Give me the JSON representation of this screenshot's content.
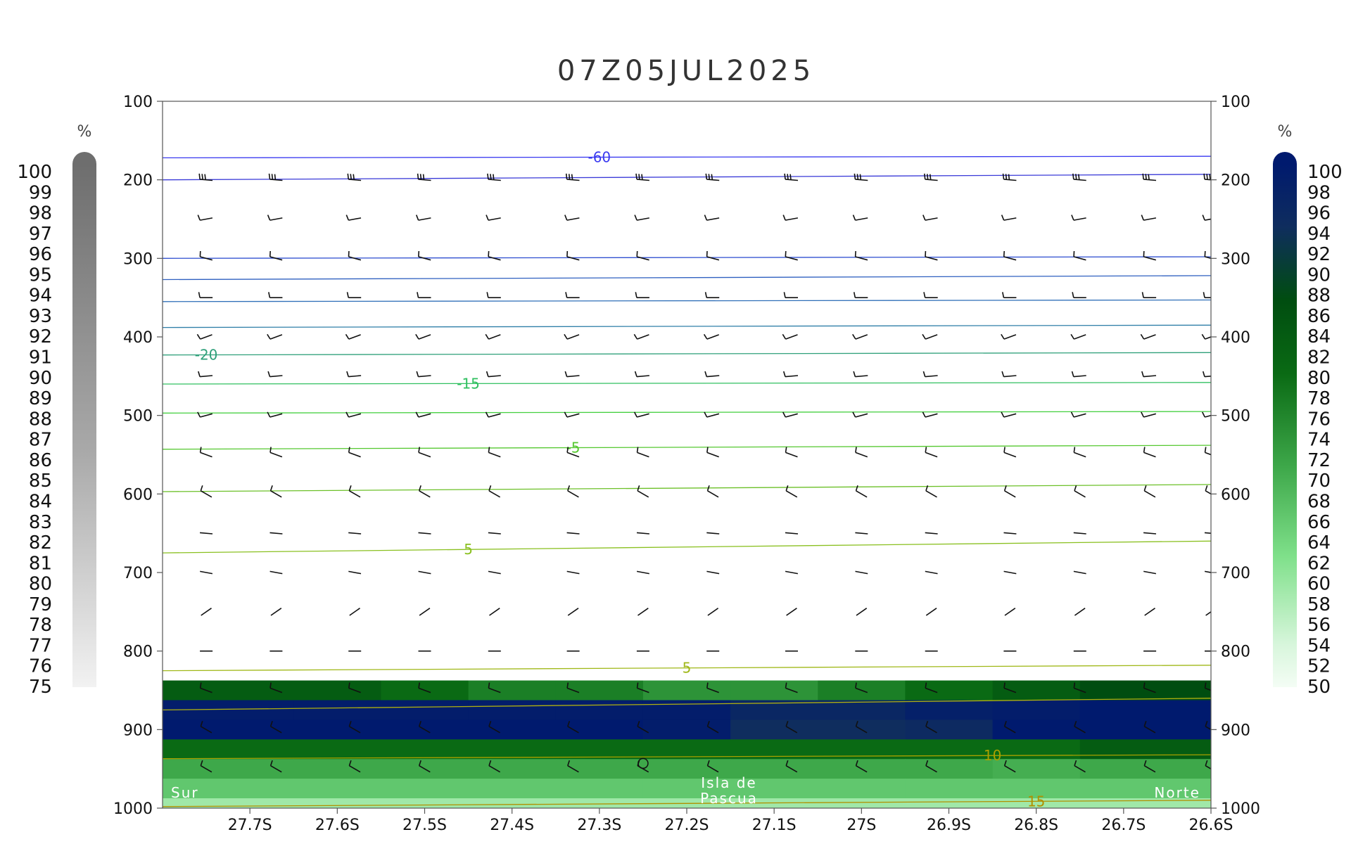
{
  "chart_data": {
    "type": "heatmap",
    "title": "07Z05JUL2025",
    "x_tick_labels": [
      "27.7S",
      "27.6S",
      "27.5S",
      "27.4S",
      "27.3S",
      "27.2S",
      "27.1S",
      "27S",
      "26.9S",
      "26.8S",
      "26.7S",
      "26.6S"
    ],
    "x_values": [
      -27.7,
      -27.6,
      -27.5,
      -27.4,
      -27.3,
      -27.2,
      -27.1,
      -27.0,
      -26.9,
      -26.8,
      -26.7,
      -26.6
    ],
    "xlim": [
      -27.8,
      -26.6
    ],
    "y_tick_labels": [
      "100",
      "200",
      "300",
      "400",
      "500",
      "600",
      "700",
      "800",
      "900",
      "1000"
    ],
    "y_values": [
      100,
      200,
      300,
      400,
      500,
      600,
      700,
      800,
      900,
      1000
    ],
    "ylim": [
      100,
      1000
    ],
    "y_axis": "pressure (inverted)",
    "annotations": {
      "left": "Sur",
      "center_line1": "Isla de",
      "center_line2": "Pascua",
      "right": "Norte"
    },
    "colorbar_left": {
      "unit": "%",
      "labels": [
        "100",
        "99",
        "98",
        "97",
        "96",
        "95",
        "94",
        "93",
        "92",
        "91",
        "90",
        "89",
        "88",
        "87",
        "86",
        "85",
        "84",
        "83",
        "82",
        "81",
        "80",
        "79",
        "78",
        "77",
        "76",
        "75"
      ],
      "colors": [
        "#6e6e6e",
        "#d2d2d2",
        "#f2f2f2"
      ]
    },
    "colorbar_right": {
      "unit": "%",
      "labels": [
        "100",
        "98",
        "96",
        "94",
        "92",
        "90",
        "88",
        "86",
        "84",
        "82",
        "80",
        "78",
        "76",
        "74",
        "72",
        "70",
        "68",
        "66",
        "64",
        "62",
        "60",
        "58",
        "56",
        "54",
        "52",
        "50"
      ],
      "colors": [
        "#001a6e",
        "#0f2d5e",
        "#004d10",
        "#0a6a14",
        "#3ea84a",
        "#7fe08a",
        "#d8f6dc",
        "#f4fdf5"
      ]
    },
    "humidity_field": {
      "description": "relative humidity shading, values in percent",
      "levels_hpa": [
        825,
        850,
        875,
        900,
        925,
        950,
        975,
        1000
      ],
      "values": [
        [
          50,
          50,
          50,
          50,
          50,
          50,
          50,
          50,
          50,
          50,
          50,
          50
        ],
        [
          88,
          88,
          86,
          84,
          84,
          82,
          82,
          84,
          86,
          88,
          90,
          90
        ],
        [
          99,
          99,
          99,
          99,
          99,
          99,
          96,
          96,
          98,
          99,
          100,
          100
        ],
        [
          100,
          100,
          100,
          100,
          100,
          99,
          94,
          94,
          95,
          100,
          100,
          100
        ],
        [
          86,
          86,
          86,
          86,
          86,
          86,
          86,
          86,
          86,
          86,
          88,
          88
        ],
        [
          80,
          80,
          80,
          80,
          80,
          80,
          80,
          80,
          80,
          78,
          80,
          80
        ],
        [
          72,
          72,
          72,
          72,
          72,
          72,
          72,
          72,
          72,
          72,
          72,
          72
        ],
        [
          62,
          62,
          62,
          62,
          62,
          62,
          62,
          62,
          62,
          62,
          62,
          62
        ]
      ]
    },
    "temperature_contours": [
      {
        "label": "-60",
        "p_left": 172,
        "p_right": 170,
        "color": "#3a3af0",
        "label_at": -27.3
      },
      {
        "label": "",
        "p_left": 200,
        "p_right": 193,
        "color": "#3a3ad8",
        "label_at": null
      },
      {
        "label": "",
        "p_left": 300,
        "p_right": 298,
        "color": "#2f4fd0",
        "label_at": null
      },
      {
        "label": "",
        "p_left": 327,
        "p_right": 322,
        "color": "#2f60c0",
        "label_at": null
      },
      {
        "label": "",
        "p_left": 355,
        "p_right": 353,
        "color": "#2f6fb8",
        "label_at": null
      },
      {
        "label": "",
        "p_left": 388,
        "p_right": 385,
        "color": "#2f7fa8",
        "label_at": null
      },
      {
        "label": "-20",
        "p_left": 423,
        "p_right": 420,
        "color": "#2fa07a",
        "label_at": -27.75
      },
      {
        "label": "-15",
        "p_left": 460,
        "p_right": 458,
        "color": "#30c060",
        "label_at": -27.45
      },
      {
        "label": "",
        "p_left": 497,
        "p_right": 495,
        "color": "#45d040",
        "label_at": null
      },
      {
        "label": "-5",
        "p_left": 543,
        "p_right": 538,
        "color": "#55c830",
        "label_at": -27.33
      },
      {
        "label": "",
        "p_left": 597,
        "p_right": 588,
        "color": "#6cc028",
        "label_at": null
      },
      {
        "label": "5",
        "p_left": 675,
        "p_right": 660,
        "color": "#8ac020",
        "label_at": -27.45
      },
      {
        "label": "5",
        "p_left": 825,
        "p_right": 818,
        "color": "#a0b818",
        "label_at": -27.2
      },
      {
        "label": "",
        "p_left": 875,
        "p_right": 860,
        "color": "#b0b010",
        "label_at": null
      },
      {
        "label": "10",
        "p_left": 937,
        "p_right": 932,
        "color": "#a8a000",
        "label_at": -26.85
      },
      {
        "label": "15",
        "p_left": 998,
        "p_right": 990,
        "color": "#b09000",
        "label_at": -26.8
      }
    ],
    "wind_barb_columns": [
      -27.75,
      -27.67,
      -27.58,
      -27.5,
      -27.42,
      -27.33,
      -27.25,
      -27.17,
      -27.08,
      -27.0,
      -26.92,
      -26.83,
      -26.75,
      -26.67,
      -26.6
    ],
    "wind_barb_levels": [
      {
        "p": 200,
        "dir": 275,
        "feathers": 3
      },
      {
        "p": 250,
        "dir": 260,
        "feathers": 1
      },
      {
        "p": 300,
        "dir": 285,
        "feathers": 1
      },
      {
        "p": 350,
        "dir": 270,
        "feathers": 1
      },
      {
        "p": 400,
        "dir": 250,
        "feathers": 1
      },
      {
        "p": 450,
        "dir": 265,
        "feathers": 1
      },
      {
        "p": 500,
        "dir": 255,
        "feathers": 1
      },
      {
        "p": 550,
        "dir": 290,
        "feathers": 1
      },
      {
        "p": 600,
        "dir": 300,
        "feathers": 1
      },
      {
        "p": 650,
        "dir": 275,
        "feathers": 0
      },
      {
        "p": 700,
        "dir": 280,
        "feathers": 0
      },
      {
        "p": 750,
        "dir": 235,
        "feathers": 0
      },
      {
        "p": 800,
        "dir": 270,
        "feathers": 0
      },
      {
        "p": 850,
        "dir": 290,
        "feathers": 1
      },
      {
        "p": 900,
        "dir": 300,
        "feathers": 1
      },
      {
        "p": 950,
        "dir": 300,
        "feathers": 1
      }
    ]
  }
}
